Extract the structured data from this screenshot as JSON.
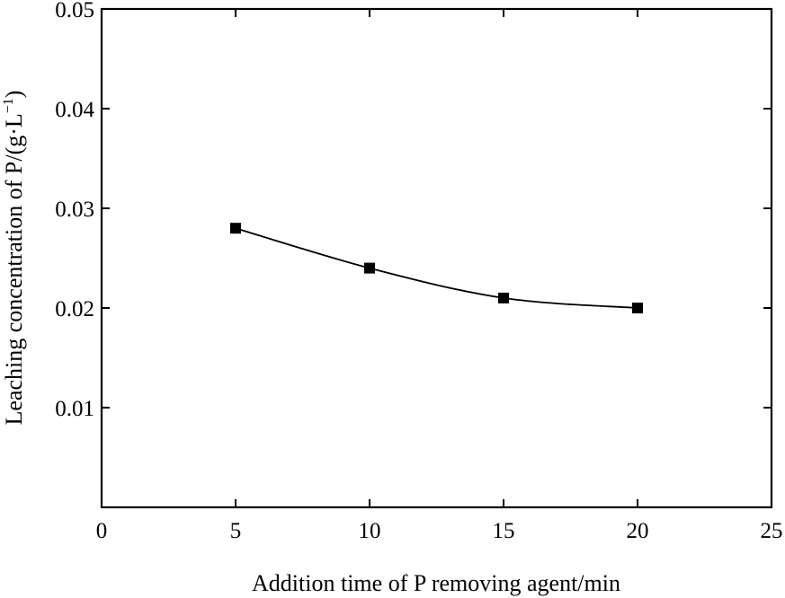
{
  "chart_data": {
    "type": "line",
    "title": "",
    "xlabel": "Addition time of P removing agent/min",
    "ylabel_main": "Leaching concentration of P/(g·L",
    "ylabel_sup": "−1",
    "ylabel_close": ")",
    "xlim": [
      0,
      25
    ],
    "ylim": [
      0,
      0.05
    ],
    "xticks": [
      0,
      5,
      10,
      15,
      20,
      25
    ],
    "xtick_labels": [
      "0",
      "5",
      "10",
      "15",
      "20",
      "25"
    ],
    "yticks": [
      0.01,
      0.02,
      0.03,
      0.04,
      0.05
    ],
    "ytick_labels": [
      "0.01",
      "0.02",
      "0.03",
      "0.04",
      "0.05"
    ],
    "grid": false,
    "legend": "none",
    "marker": "square",
    "smoothed": true,
    "line_color": "#000000",
    "series": [
      {
        "x": [
          5,
          10,
          15,
          20
        ],
        "values": [
          0.028,
          0.024,
          0.021,
          0.02
        ]
      }
    ]
  }
}
